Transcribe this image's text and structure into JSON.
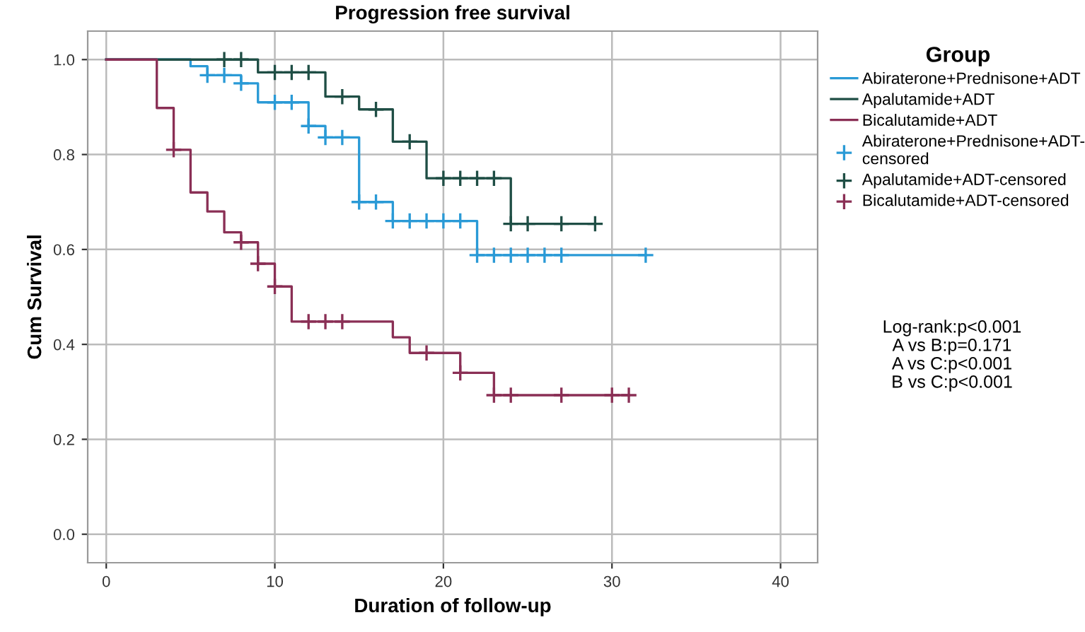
{
  "chart_data": {
    "type": "step",
    "title": "Progression free survival",
    "xlabel": "Duration of follow-up",
    "ylabel": "Cum Survival",
    "legend_title": "Group",
    "legend": "right",
    "grid": true,
    "xlim": [
      -1.1,
      42.2
    ],
    "ylim": [
      -0.06,
      1.06
    ],
    "xticks": [
      0,
      10,
      20,
      30,
      40
    ],
    "yticks": [
      {
        "value": 0,
        "label": "0.0"
      },
      {
        "value": 0.2,
        "label": "0.2"
      },
      {
        "value": 0.4,
        "label": "0.4"
      },
      {
        "value": 0.6,
        "label": "0.6"
      },
      {
        "value": 0.8,
        "label": "0.8"
      },
      {
        "value": 1,
        "label": "1.0"
      }
    ],
    "series": [
      {
        "name": "Abiraterone+Prednisone+ADT",
        "color": "#2a9ad6",
        "x": [
          0,
          5,
          6,
          8,
          9,
          12,
          13,
          15,
          17,
          22,
          32
        ],
        "values": [
          1,
          0.986,
          0.967,
          0.95,
          0.91,
          0.86,
          0.836,
          0.7,
          0.66,
          0.588,
          0.588
        ]
      },
      {
        "name": "Apalutamide+ADT",
        "color": "#1f4e45",
        "x": [
          0,
          9,
          13,
          15,
          17,
          19,
          24,
          29
        ],
        "values": [
          1,
          0.973,
          0.922,
          0.895,
          0.827,
          0.75,
          0.654,
          0.654
        ]
      },
      {
        "name": "Bicalutamide+ADT",
        "color": "#8a2f55",
        "x": [
          0,
          3,
          4,
          5,
          6,
          7,
          8,
          9,
          10,
          11,
          17,
          18,
          21,
          23,
          31
        ],
        "values": [
          1,
          0.898,
          0.81,
          0.72,
          0.68,
          0.636,
          0.615,
          0.57,
          0.522,
          0.448,
          0.415,
          0.382,
          0.34,
          0.293,
          0.293
        ]
      },
      {
        "name": "Abiraterone+Prednisone+ADT-censored",
        "type": "scatter",
        "marker": "cross",
        "color": "#2a9ad6",
        "x": [
          6,
          7,
          8,
          10,
          11,
          12,
          13,
          14,
          15,
          16,
          17,
          18,
          19,
          20,
          21,
          22,
          23,
          24,
          25,
          26,
          27,
          32
        ],
        "values": [
          0.967,
          0.967,
          0.95,
          0.91,
          0.91,
          0.86,
          0.836,
          0.836,
          0.7,
          0.7,
          0.66,
          0.66,
          0.66,
          0.66,
          0.66,
          0.588,
          0.588,
          0.588,
          0.588,
          0.588,
          0.588,
          0.588
        ]
      },
      {
        "name": "Apalutamide+ADT-censored",
        "type": "scatter",
        "marker": "cross",
        "color": "#1f4e45",
        "x": [
          7,
          8,
          10,
          11,
          12,
          14,
          16,
          18,
          20,
          21,
          22,
          23,
          24,
          25,
          27,
          29
        ],
        "values": [
          1,
          1,
          0.973,
          0.973,
          0.973,
          0.922,
          0.895,
          0.827,
          0.75,
          0.75,
          0.75,
          0.75,
          0.654,
          0.654,
          0.654,
          0.654
        ]
      },
      {
        "name": "Bicalutamide+ADT-censored",
        "type": "scatter",
        "marker": "cross",
        "color": "#8a2f55",
        "x": [
          4,
          8,
          9,
          10,
          12,
          13,
          14,
          19,
          21,
          23,
          24,
          27,
          30,
          31
        ],
        "values": [
          0.81,
          0.615,
          0.57,
          0.522,
          0.448,
          0.448,
          0.448,
          0.382,
          0.34,
          0.293,
          0.293,
          0.293,
          0.293,
          0.293
        ]
      }
    ],
    "annotations": [
      "Log-rank:p<0.001",
      "A vs B:p=0.171",
      "A vs C:p<0.001",
      "B vs C:p<0.001"
    ]
  }
}
